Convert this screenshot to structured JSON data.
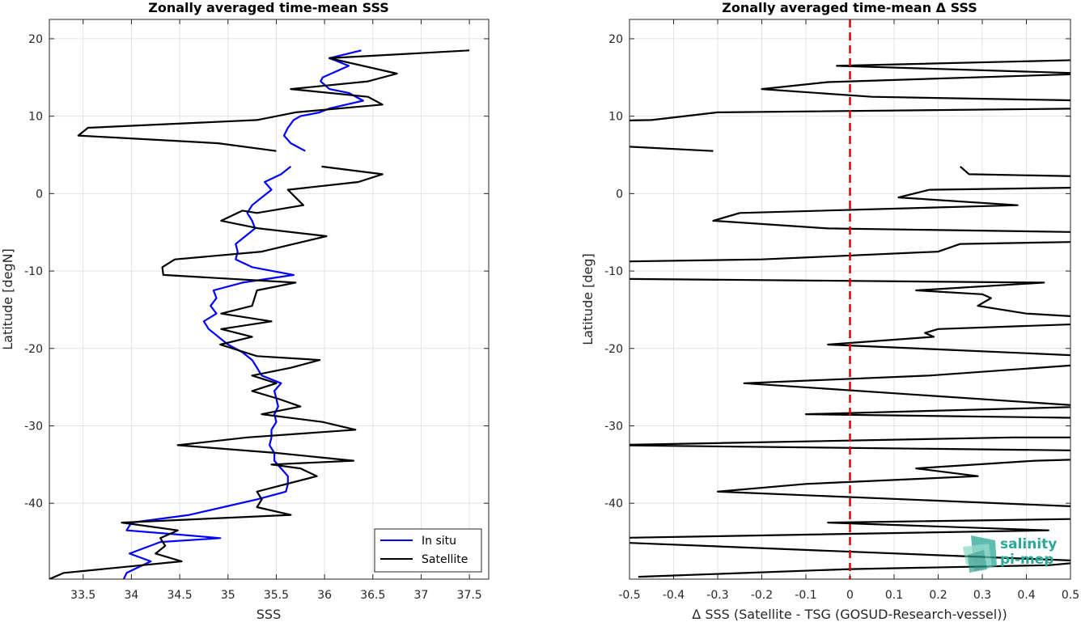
{
  "chart_data": [
    {
      "type": "line",
      "title": "Zonally averaged time-mean SSS",
      "xlabel": "SSS",
      "ylabel": "Latitude [degN]",
      "xlim": [
        33.15,
        37.7
      ],
      "ylim": [
        -49.8,
        22.5
      ],
      "xticks": [
        33.5,
        34,
        34.5,
        35,
        35.5,
        36,
        36.5,
        37,
        37.5
      ],
      "yticks": [
        20,
        10,
        0,
        -10,
        -20,
        -30,
        -40
      ],
      "grid": true,
      "legend": "bottom-right",
      "series": [
        {
          "name": "In situ",
          "color": "#0000ff",
          "segments": [
            [
              [
                36.38,
                18.5
              ],
              [
                36.05,
                17.5
              ],
              [
                36.25,
                16.5
              ],
              [
                35.98,
                15.0
              ],
              [
                35.96,
                14.5
              ],
              [
                36.05,
                13.5
              ],
              [
                36.25,
                13.0
              ],
              [
                36.4,
                12.0
              ],
              [
                36.05,
                11.0
              ],
              [
                35.95,
                10.5
              ],
              [
                35.75,
                10.0
              ],
              [
                35.68,
                9.5
              ],
              [
                35.62,
                8.5
              ],
              [
                35.58,
                7.5
              ],
              [
                35.65,
                6.5
              ],
              [
                35.8,
                5.5
              ]
            ],
            [
              [
                35.65,
                3.5
              ],
              [
                35.55,
                2.5
              ],
              [
                35.38,
                1.5
              ],
              [
                35.45,
                0.5
              ],
              [
                35.35,
                -0.5
              ],
              [
                35.25,
                -1.5
              ],
              [
                35.2,
                -2.5
              ],
              [
                35.25,
                -3.5
              ],
              [
                35.28,
                -4.5
              ],
              [
                35.18,
                -5.5
              ],
              [
                35.08,
                -6.5
              ],
              [
                35.1,
                -7.5
              ],
              [
                35.08,
                -8.5
              ],
              [
                35.25,
                -9.5
              ],
              [
                35.68,
                -10.5
              ],
              [
                35.15,
                -11.5
              ],
              [
                34.85,
                -12.5
              ],
              [
                34.88,
                -13.5
              ],
              [
                34.82,
                -14.5
              ],
              [
                34.88,
                -15.5
              ],
              [
                34.75,
                -16.5
              ],
              [
                34.8,
                -17.5
              ],
              [
                34.9,
                -18.5
              ],
              [
                35.0,
                -19.5
              ],
              [
                35.15,
                -20.5
              ],
              [
                35.25,
                -21.5
              ],
              [
                35.3,
                -22.5
              ],
              [
                35.35,
                -23.5
              ],
              [
                35.55,
                -24.5
              ],
              [
                35.48,
                -25.5
              ],
              [
                35.5,
                -26.5
              ],
              [
                35.52,
                -27.5
              ],
              [
                35.48,
                -28.5
              ],
              [
                35.5,
                -29.5
              ],
              [
                35.45,
                -30.5
              ],
              [
                35.45,
                -31.5
              ],
              [
                35.43,
                -32.5
              ],
              [
                35.48,
                -33.5
              ],
              [
                35.48,
                -34.5
              ],
              [
                35.55,
                -35.5
              ],
              [
                35.62,
                -36.5
              ],
              [
                35.62,
                -37.5
              ],
              [
                35.6,
                -38.5
              ],
              [
                35.3,
                -39.5
              ],
              [
                34.95,
                -40.5
              ],
              [
                34.6,
                -41.5
              ],
              [
                34.0,
                -42.5
              ],
              [
                33.95,
                -43.5
              ],
              [
                34.45,
                -44.0
              ],
              [
                34.92,
                -44.5
              ],
              [
                34.3,
                -45.0
              ],
              [
                33.98,
                -46.5
              ],
              [
                34.2,
                -47.5
              ],
              [
                33.95,
                -49.0
              ],
              [
                33.92,
                -49.8
              ]
            ]
          ]
        },
        {
          "name": "Satellite",
          "color": "#000000",
          "segments": [
            [
              [
                37.5,
                18.5
              ],
              [
                36.05,
                17.5
              ],
              [
                36.75,
                15.5
              ],
              [
                36.45,
                14.5
              ],
              [
                35.65,
                13.5
              ],
              [
                36.45,
                12.5
              ],
              [
                36.6,
                11.5
              ],
              [
                35.7,
                10.5
              ],
              [
                35.3,
                9.5
              ],
              [
                33.55,
                8.5
              ],
              [
                33.45,
                7.5
              ],
              [
                34.9,
                6.5
              ],
              [
                35.5,
                5.5
              ]
            ],
            [
              [
                35.97,
                3.5
              ],
              [
                36.6,
                2.5
              ],
              [
                36.35,
                1.5
              ],
              [
                35.62,
                0.5
              ],
              [
                35.78,
                -1.5
              ],
              [
                35.3,
                -2.5
              ],
              [
                35.15,
                -2.2
              ],
              [
                34.93,
                -3.5
              ],
              [
                35.32,
                -4.5
              ],
              [
                36.02,
                -5.5
              ],
              [
                35.35,
                -7.5
              ],
              [
                34.45,
                -8.5
              ],
              [
                34.32,
                -9.5
              ],
              [
                34.33,
                -10.5
              ],
              [
                35.7,
                -11.5
              ],
              [
                35.3,
                -12.5
              ],
              [
                35.25,
                -14.5
              ],
              [
                34.93,
                -15.5
              ],
              [
                35.45,
                -16.5
              ],
              [
                34.93,
                -17.5
              ],
              [
                35.25,
                -18.5
              ],
              [
                34.92,
                -19.5
              ],
              [
                35.3,
                -21.0
              ],
              [
                35.95,
                -21.5
              ],
              [
                35.65,
                -22.5
              ],
              [
                35.25,
                -23.5
              ],
              [
                35.5,
                -24.5
              ],
              [
                35.25,
                -25.5
              ],
              [
                35.52,
                -26.5
              ],
              [
                35.75,
                -27.5
              ],
              [
                35.35,
                -28.5
              ],
              [
                35.98,
                -29.5
              ],
              [
                36.32,
                -30.5
              ],
              [
                35.2,
                -31.5
              ],
              [
                34.48,
                -32.5
              ],
              [
                35.5,
                -33.5
              ],
              [
                36.3,
                -34.5
              ],
              [
                35.45,
                -35.0
              ],
              [
                35.75,
                -35.5
              ],
              [
                35.92,
                -36.5
              ],
              [
                35.3,
                -38.5
              ],
              [
                35.35,
                -39.5
              ],
              [
                35.3,
                -40.5
              ],
              [
                35.65,
                -41.5
              ],
              [
                33.9,
                -42.5
              ],
              [
                34.48,
                -43.5
              ],
              [
                34.3,
                -44.5
              ],
              [
                34.35,
                -45.5
              ],
              [
                34.25,
                -46.5
              ],
              [
                34.52,
                -47.5
              ],
              [
                33.3,
                -49.0
              ],
              [
                33.15,
                -49.8
              ]
            ]
          ]
        }
      ]
    },
    {
      "type": "line",
      "title": "Zonally averaged time-mean Δ SSS",
      "xlabel": "Δ SSS (Satellite - TSG (GOSUD-Research-vessel))",
      "ylabel": "Latitude [deg]",
      "xlim": [
        -0.5,
        0.5
      ],
      "ylim": [
        -49.8,
        22.5
      ],
      "xticks": [
        -0.5,
        -0.4,
        -0.3,
        -0.2,
        -0.1,
        0,
        0.1,
        0.2,
        0.3,
        0.4,
        0.5
      ],
      "yticks": [
        20,
        10,
        0,
        -10,
        -20,
        -30,
        -40
      ],
      "grid": true,
      "reference_line": {
        "x": 0,
        "color": "#e00000",
        "style": "dashed"
      },
      "series": [
        {
          "color": "#000000",
          "segments": [
            [
              [
                0.55,
                17.3
              ],
              [
                -0.03,
                16.5
              ],
              [
                0.55,
                15.5
              ],
              [
                0.0,
                14.5
              ],
              [
                -0.05,
                14.4
              ],
              [
                -0.2,
                13.5
              ],
              [
                0.05,
                12.5
              ],
              [
                0.55,
                12.0
              ]
            ],
            [
              [
                0.55,
                11.0
              ],
              [
                -0.3,
                10.5
              ],
              [
                -0.45,
                9.5
              ],
              [
                -0.55,
                9.4
              ]
            ],
            [
              [
                -0.55,
                6.2
              ],
              [
                -0.31,
                5.5
              ]
            ],
            [
              [
                0.25,
                3.5
              ],
              [
                0.27,
                2.5
              ],
              [
                0.55,
                2.2
              ]
            ],
            [
              [
                0.55,
                0.8
              ],
              [
                0.18,
                0.5
              ],
              [
                0.11,
                -0.5
              ],
              [
                0.38,
                -1.5
              ],
              [
                -0.25,
                -2.5
              ],
              [
                -0.31,
                -3.5
              ],
              [
                -0.05,
                -4.5
              ],
              [
                0.55,
                -5.0
              ]
            ],
            [
              [
                0.55,
                -6.2
              ],
              [
                0.25,
                -6.5
              ],
              [
                0.2,
                -7.5
              ],
              [
                -0.2,
                -8.5
              ],
              [
                -0.55,
                -8.8
              ]
            ],
            [
              [
                -0.55,
                -11.0
              ],
              [
                0.44,
                -11.5
              ],
              [
                0.15,
                -12.5
              ],
              [
                0.3,
                -13.0
              ],
              [
                0.32,
                -13.5
              ],
              [
                0.29,
                -14.5
              ],
              [
                0.4,
                -15.5
              ],
              [
                0.55,
                -16.0
              ]
            ],
            [
              [
                0.55,
                -16.8
              ],
              [
                0.2,
                -17.5
              ],
              [
                0.17,
                -18.0
              ],
              [
                0.19,
                -18.5
              ],
              [
                -0.05,
                -19.5
              ],
              [
                0.55,
                -21.0
              ]
            ],
            [
              [
                0.55,
                -22.0
              ],
              [
                0.18,
                -23.5
              ],
              [
                -0.24,
                -24.5
              ],
              [
                0.55,
                -27.5
              ],
              [
                -0.1,
                -28.5
              ],
              [
                0.55,
                -29.0
              ]
            ],
            [
              [
                0.55,
                -31.5
              ],
              [
                0.37,
                -31.5
              ],
              [
                -0.55,
                -32.5
              ],
              [
                0.55,
                -33.2
              ]
            ],
            [
              [
                0.55,
                -34.3
              ],
              [
                0.42,
                -34.5
              ],
              [
                0.15,
                -35.5
              ],
              [
                0.29,
                -36.5
              ],
              [
                -0.1,
                -37.5
              ],
              [
                -0.3,
                -38.5
              ],
              [
                0.55,
                -40.5
              ]
            ],
            [
              [
                0.55,
                -42.0
              ],
              [
                -0.05,
                -42.5
              ],
              [
                0.45,
                -43.5
              ],
              [
                -0.55,
                -44.5
              ]
            ],
            [
              [
                -0.55,
                -45.0
              ],
              [
                0.55,
                -47.5
              ],
              [
                0.45,
                -48.0
              ],
              [
                0.0,
                -48.5
              ],
              [
                -0.48,
                -49.5
              ]
            ]
          ]
        }
      ]
    }
  ],
  "legend": {
    "entries": [
      {
        "label": "In situ",
        "color": "#0000ff"
      },
      {
        "label": "Satellite",
        "color": "#000000"
      }
    ]
  },
  "logo": {
    "line1": "salinity",
    "line2": "pi-mep"
  }
}
